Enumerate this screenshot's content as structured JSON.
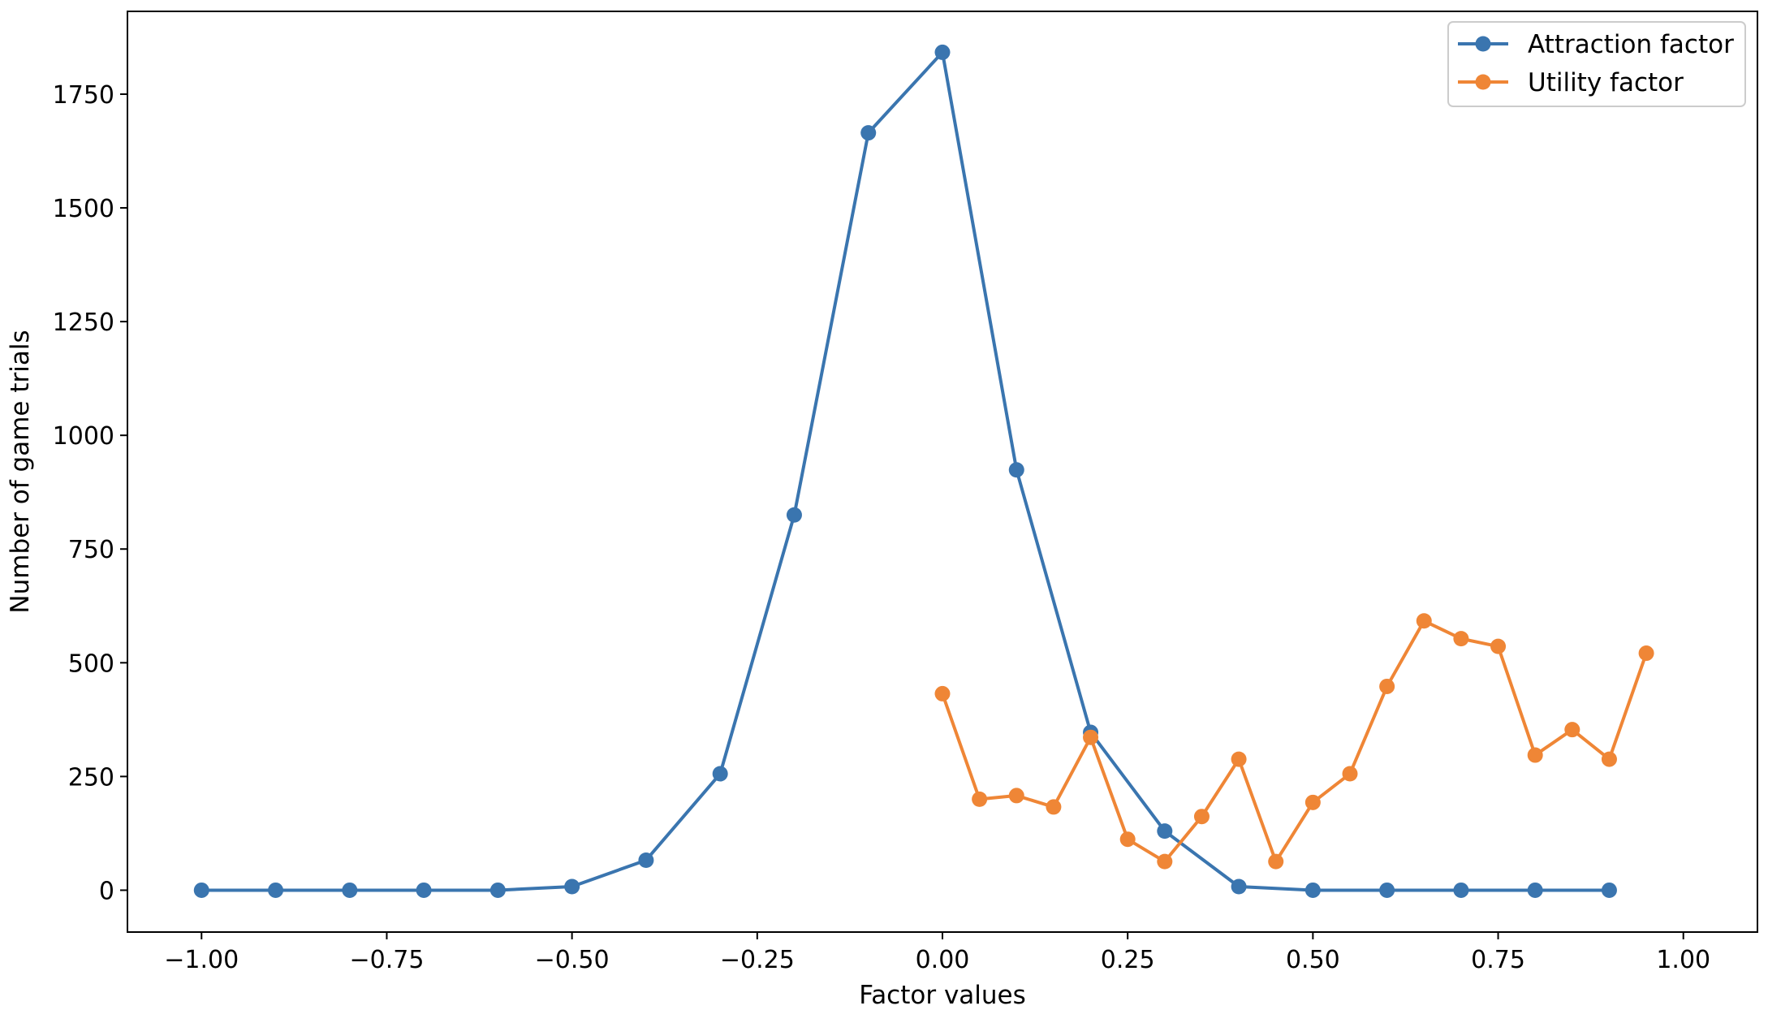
{
  "chart_data": {
    "type": "line",
    "title": "",
    "xlabel": "Factor values",
    "ylabel": "Number of game trials",
    "xlim": [
      -1.1,
      1.1
    ],
    "ylim": [
      -92,
      1932
    ],
    "x_ticks": [
      -1.0,
      -0.75,
      -0.5,
      -0.25,
      0.0,
      0.25,
      0.5,
      0.75,
      1.0
    ],
    "x_tick_labels": [
      "−1.00",
      "−0.75",
      "−0.50",
      "−0.25",
      "0.00",
      "0.25",
      "0.50",
      "0.75",
      "1.00"
    ],
    "y_ticks": [
      0,
      250,
      500,
      750,
      1000,
      1250,
      1500,
      1750
    ],
    "y_tick_labels": [
      "0",
      "250",
      "500",
      "750",
      "1000",
      "1250",
      "1500",
      "1750"
    ],
    "grid": false,
    "legend_position": "top-right",
    "series": [
      {
        "name": "Attraction factor",
        "color": "#3a75af",
        "marker": "circle",
        "x": [
          -1.0,
          -0.9,
          -0.8,
          -0.7,
          -0.6,
          -0.5,
          -0.4,
          -0.3,
          -0.2,
          -0.1,
          0.0,
          0.1,
          0.2,
          0.3,
          0.4,
          0.5,
          0.6,
          0.7,
          0.8,
          0.9
        ],
        "values": [
          0,
          0,
          0,
          0,
          0,
          8,
          66,
          256,
          825,
          1665,
          1842,
          924,
          347,
          130,
          8,
          0,
          0,
          0,
          0,
          0
        ]
      },
      {
        "name": "Utility factor",
        "color": "#ef8636",
        "marker": "circle",
        "x": [
          0.0,
          0.05,
          0.1,
          0.15,
          0.2,
          0.25,
          0.3,
          0.35,
          0.4,
          0.45,
          0.5,
          0.55,
          0.6,
          0.65,
          0.7,
          0.75,
          0.8,
          0.85,
          0.9,
          0.95
        ],
        "values": [
          432,
          200,
          208,
          183,
          336,
          112,
          63,
          162,
          288,
          63,
          193,
          256,
          448,
          592,
          553,
          536,
          297,
          353,
          288,
          521
        ]
      }
    ]
  }
}
